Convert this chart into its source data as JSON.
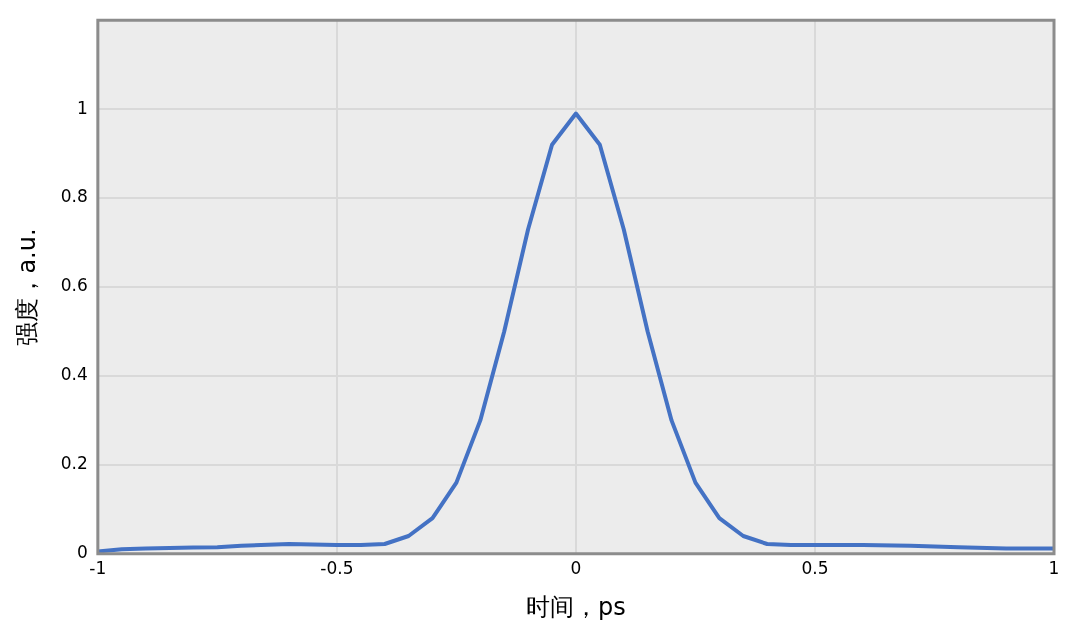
{
  "chart_data": {
    "type": "line",
    "xlabel": "时间，ps",
    "ylabel": "强度，a.u.",
    "x": [
      -1,
      -0.95,
      -0.9,
      -0.8,
      -0.75,
      -0.7,
      -0.6,
      -0.5,
      -0.45,
      -0.4,
      -0.35,
      -0.3,
      -0.25,
      -0.2,
      -0.15,
      -0.1,
      -0.05,
      0,
      0.05,
      0.1,
      0.15,
      0.2,
      0.25,
      0.3,
      0.35,
      0.4,
      0.45,
      0.5,
      0.6,
      0.7,
      0.8,
      0.9,
      1
    ],
    "series": [
      {
        "color": "#4472c4",
        "values": [
          0.005,
          0.01,
          0.012,
          0.014,
          0.015,
          0.018,
          0.022,
          0.02,
          0.02,
          0.022,
          0.04,
          0.08,
          0.16,
          0.3,
          0.5,
          0.73,
          0.92,
          0.99,
          0.92,
          0.73,
          0.5,
          0.3,
          0.16,
          0.08,
          0.04,
          0.022,
          0.02,
          0.02,
          0.02,
          0.018,
          0.015,
          0.012,
          0.012
        ]
      }
    ],
    "xlim": [
      -1,
      1
    ],
    "xticks": [
      -1,
      -0.5,
      0,
      0.5,
      1
    ],
    "ylim": [
      0,
      1.2
    ],
    "yticks": [
      0,
      0.2,
      0.4,
      0.6,
      0.8,
      1
    ],
    "grid": true,
    "legend": false,
    "marker": "none",
    "line_style": "solid"
  }
}
